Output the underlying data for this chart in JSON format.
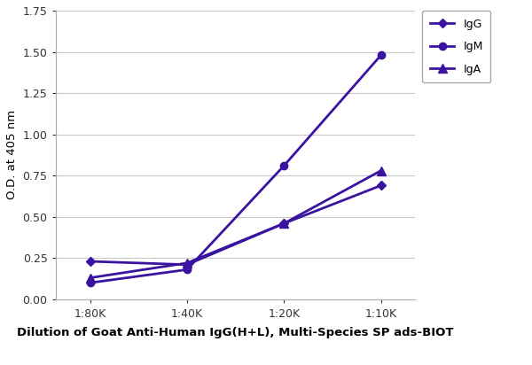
{
  "x_labels": [
    "1:80K",
    "1:40K",
    "1:20K",
    "1:10K"
  ],
  "x_values": [
    0,
    1,
    2,
    3
  ],
  "series": [
    {
      "name": "IgG",
      "values": [
        0.23,
        0.21,
        0.46,
        0.69
      ],
      "color": "#3a14a0",
      "marker": "D",
      "markersize": 5,
      "linewidth": 2.0,
      "zorder": 3
    },
    {
      "name": "IgM",
      "values": [
        0.1,
        0.18,
        0.81,
        1.48
      ],
      "color": "#3a14a0",
      "marker": "o",
      "markersize": 6,
      "linewidth": 2.0,
      "zorder": 4
    },
    {
      "name": "IgA",
      "values": [
        0.13,
        0.22,
        0.46,
        0.78
      ],
      "color": "#3a14a0",
      "marker": "^",
      "markersize": 7,
      "linewidth": 2.0,
      "zorder": 5
    }
  ],
  "xlabel": "Dilution of Goat Anti-Human IgG(H+L), Multi-Species SP ads-BIOT",
  "ylabel": "O.D. at 405 nm",
  "ylim": [
    0.0,
    1.75
  ],
  "yticks": [
    0.0,
    0.25,
    0.5,
    0.75,
    1.0,
    1.25,
    1.5,
    1.75
  ],
  "legend_fontsize": 9,
  "xlabel_fontsize": 9.5,
  "ylabel_fontsize": 9.5,
  "tick_fontsize": 9,
  "background_color": "#ffffff",
  "grid_color": "#c8c8c8"
}
